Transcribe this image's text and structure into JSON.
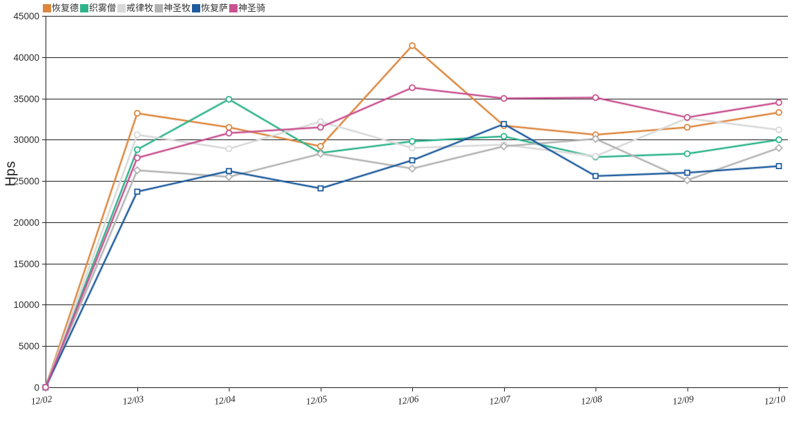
{
  "chart_data": {
    "type": "line",
    "title": "",
    "xlabel": "",
    "ylabel": "Hps",
    "categories": [
      "12/02",
      "12/03",
      "12/04",
      "12/05",
      "12/06",
      "12/07",
      "12/08",
      "12/09",
      "12/10"
    ],
    "ylim": [
      0,
      45000
    ],
    "ytick_step": 5000,
    "yticks": [
      0,
      5000,
      10000,
      15000,
      20000,
      25000,
      30000,
      35000,
      40000,
      45000
    ],
    "grid": "horizontal",
    "legend_position": "top-left",
    "series": [
      {
        "name": "恢复德",
        "color": "#dd873f",
        "symbol": "circle",
        "values": [
          0,
          33200,
          31500,
          29200,
          41400,
          31700,
          30600,
          31500,
          33300
        ]
      },
      {
        "name": "织雾僧",
        "color": "#2eb48c",
        "symbol": "circle",
        "values": [
          0,
          28800,
          34900,
          28400,
          29800,
          30400,
          27900,
          28300,
          30000
        ]
      },
      {
        "name": "戒律牧",
        "color": "#d8d8d8",
        "symbol": "circle",
        "values": [
          0,
          30600,
          28900,
          32200,
          29000,
          29400,
          28000,
          32600,
          31200
        ]
      },
      {
        "name": "神圣牧",
        "color": "#b3b3b3",
        "symbol": "diamond",
        "values": [
          0,
          26300,
          25500,
          28300,
          26500,
          29200,
          30100,
          25100,
          29000
        ]
      },
      {
        "name": "恢复萨",
        "color": "#1f5c9e",
        "symbol": "square",
        "values": [
          0,
          23700,
          26200,
          24100,
          27500,
          31900,
          25600,
          26000,
          26800
        ]
      },
      {
        "name": "神圣骑",
        "color": "#c95391",
        "symbol": "circle",
        "values": [
          0,
          27800,
          30800,
          31500,
          36300,
          35000,
          35100,
          32700,
          34500
        ]
      }
    ]
  }
}
